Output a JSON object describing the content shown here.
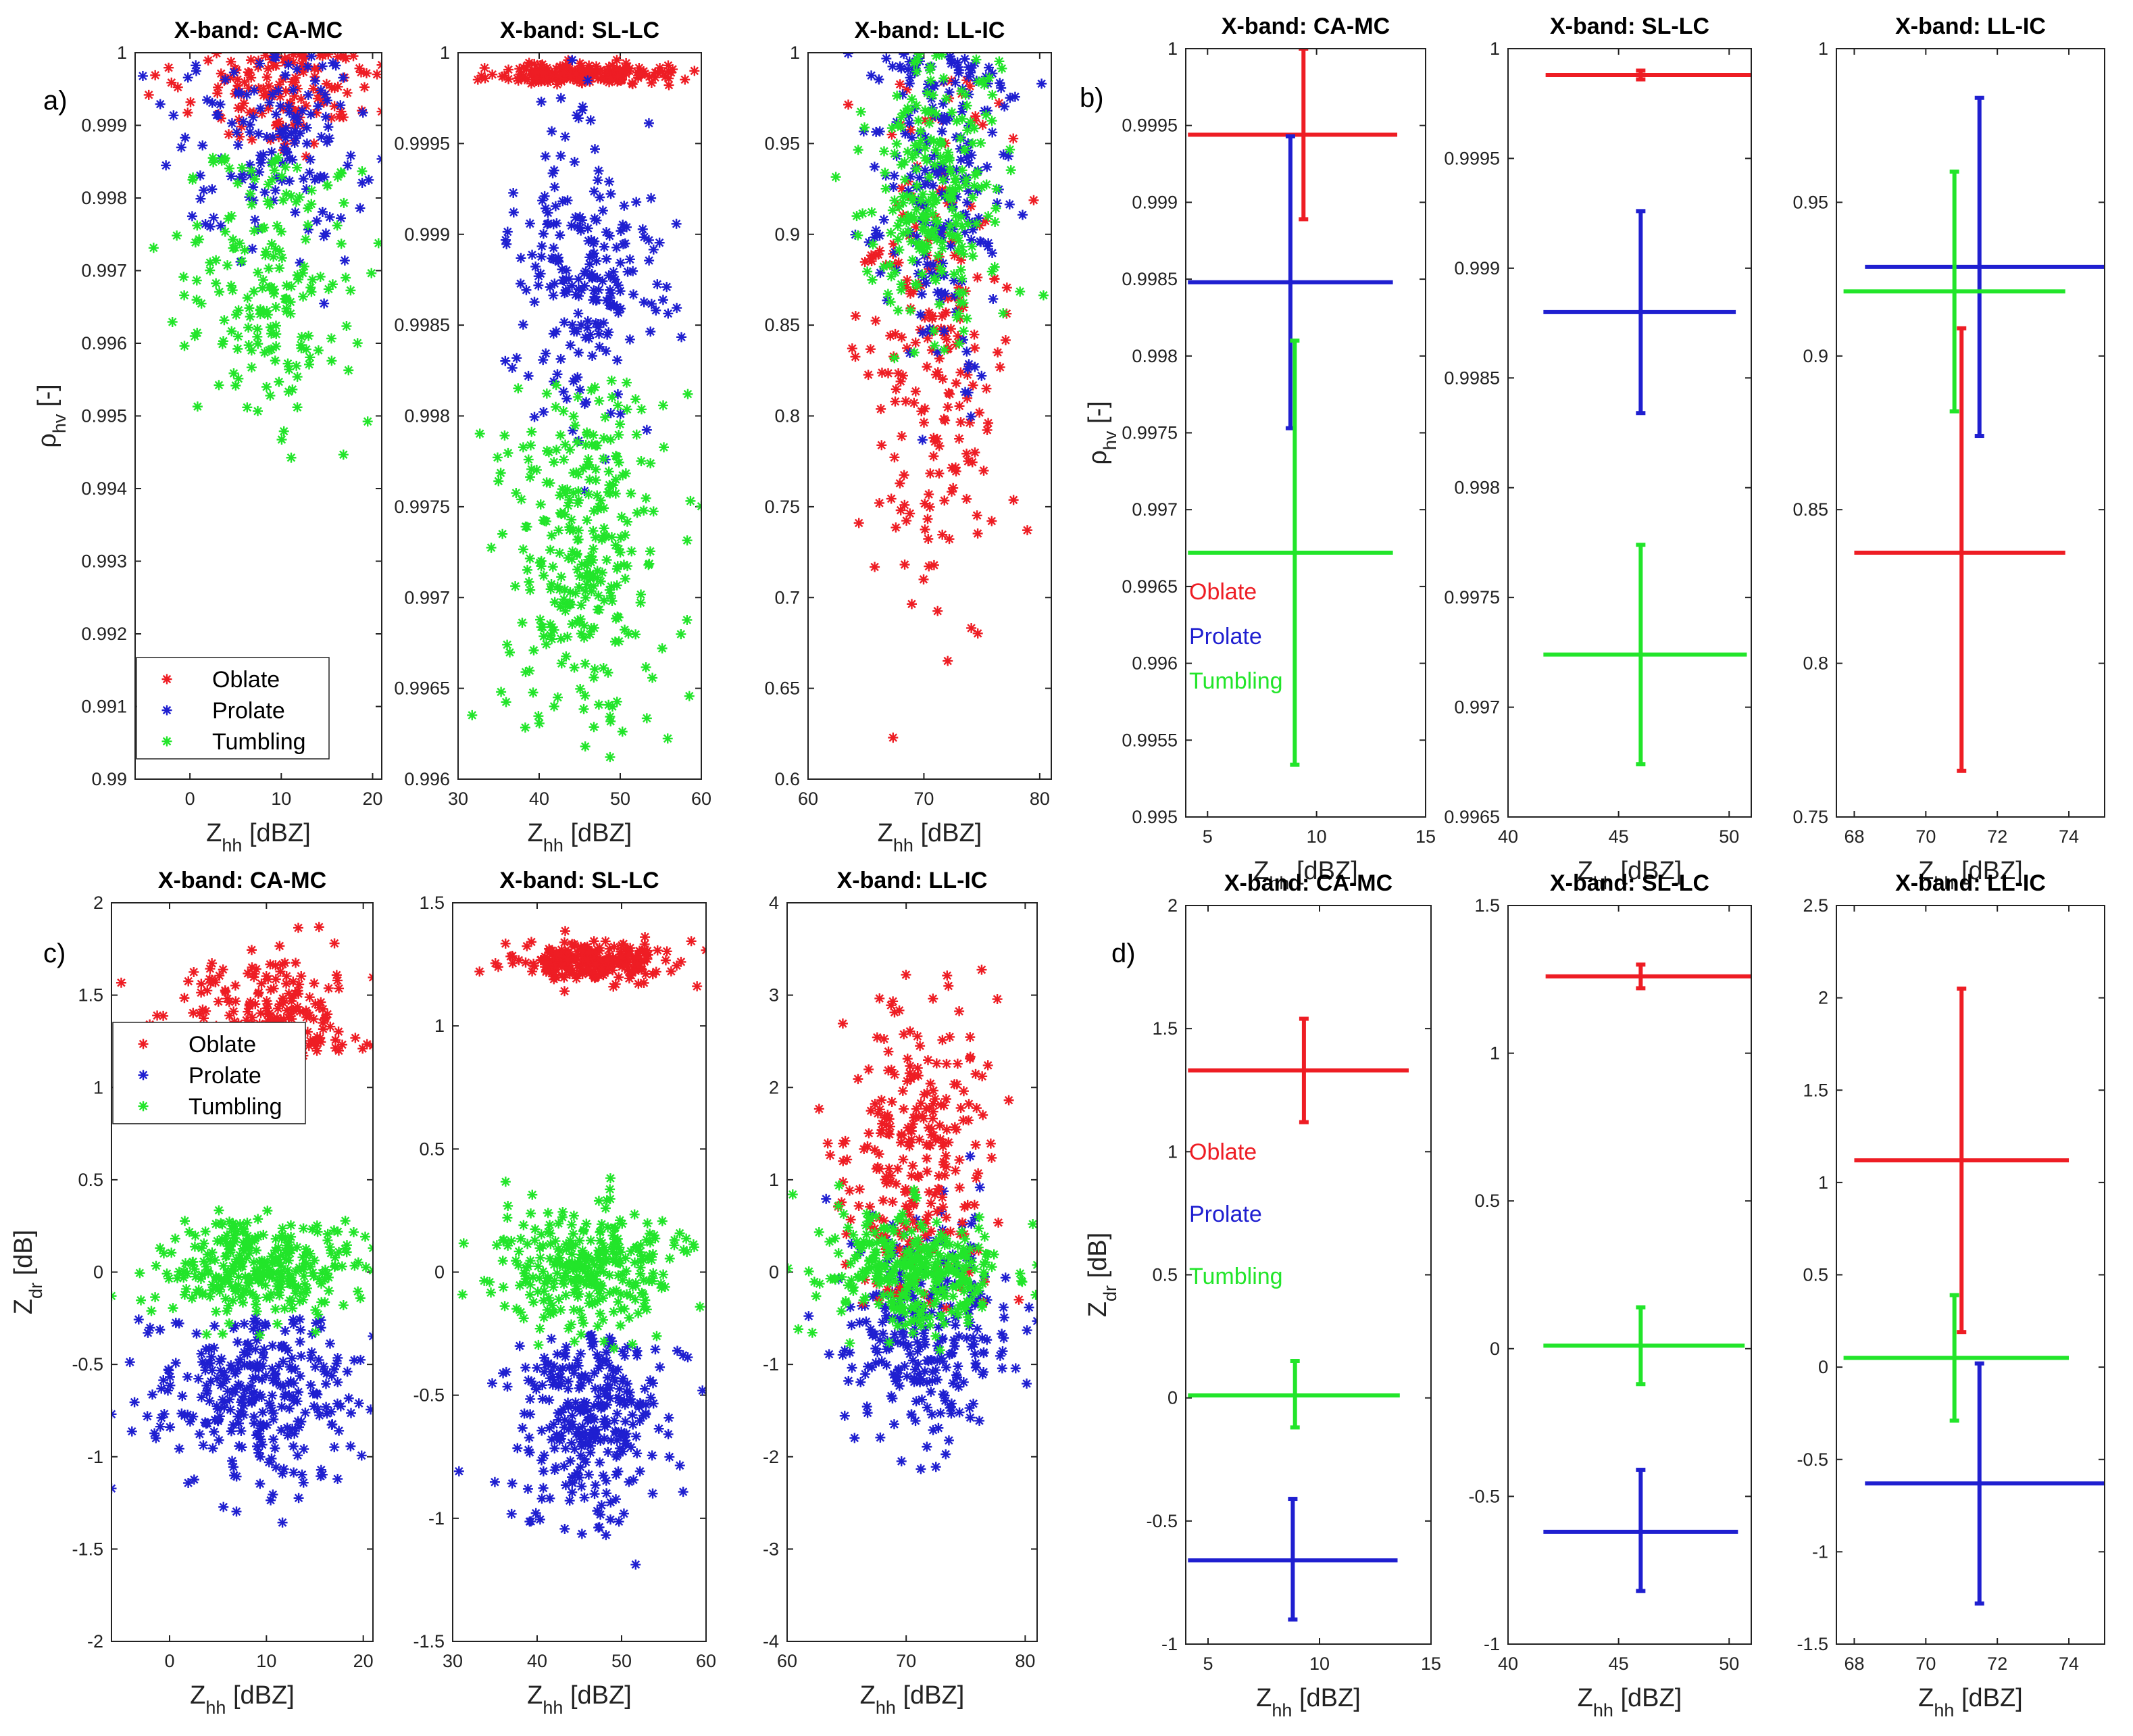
{
  "figure": {
    "panel_labels": [
      "a)",
      "b)",
      "c)",
      "d)"
    ],
    "colors": {
      "Oblate": "#ee1d24",
      "Prolate": "#1f1fd0",
      "Tumbling": "#22e52a"
    }
  },
  "chart_data": [
    {
      "id": "a1",
      "type": "scatter",
      "title": "X-band: CA-MC",
      "xlabel": "Z_hh [dBZ]",
      "ylabel": "ρ_hv [-]",
      "xlim": [
        -6,
        21
      ],
      "ylim": [
        0.99,
        1.0
      ],
      "xticks": [
        "0",
        "10",
        "20"
      ],
      "yticks": [
        "0.99",
        "0.991",
        "0.992",
        "0.993",
        "0.994",
        "0.995",
        "0.996",
        "0.997",
        "0.998",
        "0.999",
        "1"
      ],
      "legend": {
        "position": "bottom-left",
        "entries": [
          "Oblate",
          "Prolate",
          "Tumbling"
        ]
      },
      "series": [
        {
          "name": "Oblate",
          "n": 150,
          "x_mean": 10,
          "x_sd": 5,
          "y_mean": 0.9995,
          "y_sd": 0.00035,
          "y_max": 1.0
        },
        {
          "name": "Prolate",
          "n": 150,
          "x_mean": 9,
          "x_sd": 4.5,
          "y_mean": 0.9987,
          "y_sd": 0.0007,
          "y_max": 1.0
        },
        {
          "name": "Tumbling",
          "n": 190,
          "x_mean": 9,
          "x_sd": 5,
          "y_mean": 0.9969,
          "y_sd": 0.0011,
          "y_max": 0.9986
        }
      ]
    },
    {
      "id": "a2",
      "type": "scatter",
      "title": "X-band: SL-LC",
      "xlabel": "Z_hh [dBZ]",
      "ylabel": "",
      "xlim": [
        30,
        60
      ],
      "ylim": [
        0.996,
        1.0
      ],
      "xticks": [
        "30",
        "40",
        "50",
        "60"
      ],
      "yticks": [
        "0.996",
        "0.9965",
        "0.997",
        "0.9975",
        "0.998",
        "0.9985",
        "0.999",
        "0.9995",
        "1"
      ],
      "series": [
        {
          "name": "Oblate",
          "n": 200,
          "x_mean": 46,
          "x_sd": 5.5,
          "y_mean": 0.99988,
          "y_sd": 3e-05,
          "y_max": 1.0
        },
        {
          "name": "Prolate",
          "n": 220,
          "x_mean": 46,
          "x_sd": 4.5,
          "y_mean": 0.9988,
          "y_sd": 0.00042,
          "y_max": 1.0
        },
        {
          "name": "Tumbling",
          "n": 300,
          "x_mean": 46,
          "x_sd": 5,
          "y_mean": 0.99725,
          "y_sd": 0.00045,
          "y_max": 0.9982
        }
      ]
    },
    {
      "id": "a3",
      "type": "scatter",
      "title": "X-band: LL-IC",
      "xlabel": "Z_hh [dBZ]",
      "ylabel": "",
      "xlim": [
        60,
        81
      ],
      "ylim": [
        0.6,
        1.0
      ],
      "xticks": [
        "60",
        "70",
        "80"
      ],
      "yticks": [
        "0.6",
        "0.65",
        "0.7",
        "0.75",
        "0.8",
        "0.85",
        "0.9",
        "0.95",
        "1"
      ],
      "series": [
        {
          "name": "Oblate",
          "n": 220,
          "x_mean": 71,
          "x_sd": 3,
          "y_mean": 0.835,
          "y_sd": 0.07,
          "y_max": 0.99
        },
        {
          "name": "Prolate",
          "n": 220,
          "x_mean": 71.5,
          "x_sd": 3.3,
          "y_mean": 0.928,
          "y_sd": 0.055,
          "y_max": 1.0
        },
        {
          "name": "Tumbling",
          "n": 240,
          "x_mean": 70.8,
          "x_sd": 3.2,
          "y_mean": 0.92,
          "y_sd": 0.04,
          "y_max": 1.0
        }
      ]
    },
    {
      "id": "b1",
      "type": "errorbar",
      "title": "X-band: CA-MC",
      "xlabel": "Z_hh [dBZ]",
      "ylabel": "ρ_hv [-]",
      "xlim": [
        4,
        15
      ],
      "ylim": [
        0.995,
        1.0
      ],
      "xticks": [
        "5",
        "10",
        "15"
      ],
      "yticks": [
        "0.995",
        "0.9955",
        "0.996",
        "0.9965",
        "0.997",
        "0.9975",
        "0.998",
        "0.9985",
        "0.999",
        "0.9995",
        "1"
      ],
      "inline_legend": [
        "Oblate",
        "Prolate",
        "Tumbling"
      ],
      "series": [
        {
          "name": "Oblate",
          "x": 9.4,
          "x_lo": 4.1,
          "x_hi": 13.7,
          "y": 0.99944,
          "y_lo": 0.99889,
          "y_hi": 1.0
        },
        {
          "name": "Prolate",
          "x": 8.8,
          "x_lo": 4.1,
          "x_hi": 13.5,
          "y": 0.99848,
          "y_lo": 0.99753,
          "y_hi": 0.99943
        },
        {
          "name": "Tumbling",
          "x": 9.0,
          "x_lo": 4.1,
          "x_hi": 13.5,
          "y": 0.99672,
          "y_lo": 0.99534,
          "y_hi": 0.9981
        }
      ]
    },
    {
      "id": "b2",
      "type": "errorbar",
      "title": "X-band: SL-LC",
      "xlabel": "Z_hh [dBZ]",
      "ylabel": "",
      "xlim": [
        40,
        51
      ],
      "ylim": [
        0.9965,
        1.0
      ],
      "xticks": [
        "40",
        "45",
        "50"
      ],
      "yticks": [
        "0.9965",
        "0.997",
        "0.9975",
        "0.998",
        "0.9985",
        "0.999",
        "0.9995",
        "1"
      ],
      "series": [
        {
          "name": "Oblate",
          "x": 46.0,
          "x_lo": 41.7,
          "x_hi": 51.0,
          "y": 0.99988,
          "y_lo": 0.99986,
          "y_hi": 0.9999
        },
        {
          "name": "Prolate",
          "x": 46.0,
          "x_lo": 41.6,
          "x_hi": 50.3,
          "y": 0.9988,
          "y_lo": 0.99834,
          "y_hi": 0.99926
        },
        {
          "name": "Tumbling",
          "x": 46.0,
          "x_lo": 41.6,
          "x_hi": 50.8,
          "y": 0.99724,
          "y_lo": 0.99674,
          "y_hi": 0.99774
        }
      ]
    },
    {
      "id": "b3",
      "type": "errorbar",
      "title": "X-band: LL-IC",
      "xlabel": "Z_hh [dBZ]",
      "ylabel": "",
      "xlim": [
        67.5,
        75
      ],
      "ylim": [
        0.75,
        1.0
      ],
      "xticks": [
        "68",
        "70",
        "72",
        "74"
      ],
      "yticks": [
        "0.75",
        "0.8",
        "0.85",
        "0.9",
        "0.95",
        "1"
      ],
      "series": [
        {
          "name": "Oblate",
          "x": 71.0,
          "x_lo": 68.0,
          "x_hi": 73.9,
          "y": 0.836,
          "y_lo": 0.765,
          "y_hi": 0.909
        },
        {
          "name": "Prolate",
          "x": 71.5,
          "x_lo": 68.3,
          "x_hi": 75.0,
          "y": 0.929,
          "y_lo": 0.874,
          "y_hi": 0.984
        },
        {
          "name": "Tumbling",
          "x": 70.8,
          "x_lo": 67.7,
          "x_hi": 73.9,
          "y": 0.921,
          "y_lo": 0.882,
          "y_hi": 0.96
        }
      ]
    },
    {
      "id": "c1",
      "type": "scatter",
      "title": "X-band: CA-MC",
      "xlabel": "Z_hh [dBZ]",
      "ylabel": "Z_dr [dB]",
      "xlim": [
        -6,
        21
      ],
      "ylim": [
        -2,
        2
      ],
      "xticks": [
        "0",
        "10",
        "20"
      ],
      "yticks": [
        "-2",
        "-1.5",
        "-1",
        "-0.5",
        "0",
        "0.5",
        "1",
        "1.5",
        "2"
      ],
      "legend": {
        "position": "top-left",
        "entries": [
          "Oblate",
          "Prolate",
          "Tumbling"
        ]
      },
      "series": [
        {
          "name": "Oblate",
          "n": 230,
          "x_mean": 10,
          "x_sd": 4.5,
          "y_mean": 1.33,
          "y_sd": 0.21,
          "y_min": 1.17,
          "y_max": 1.95
        },
        {
          "name": "Prolate",
          "n": 300,
          "x_mean": 9,
          "x_sd": 5,
          "y_mean": -0.66,
          "y_sd": 0.26,
          "y_max": -0.25
        },
        {
          "name": "Tumbling",
          "n": 300,
          "x_mean": 9,
          "x_sd": 5,
          "y_mean": 0.02,
          "y_sd": 0.13
        }
      ]
    },
    {
      "id": "c2",
      "type": "scatter",
      "title": "X-band: SL-LC",
      "xlabel": "Z_hh [dBZ]",
      "ylabel": "",
      "xlim": [
        30,
        60
      ],
      "ylim": [
        -1.5,
        1.5
      ],
      "xticks": [
        "30",
        "40",
        "50",
        "60"
      ],
      "yticks": [
        "-1.5",
        "-1",
        "-0.5",
        "0",
        "0.5",
        "1",
        "1.5"
      ],
      "series": [
        {
          "name": "Oblate",
          "n": 260,
          "x_mean": 46,
          "x_sd": 5,
          "y_mean": 1.26,
          "y_sd": 0.04
        },
        {
          "name": "Prolate",
          "n": 300,
          "x_mean": 46,
          "x_sd": 4.5,
          "y_mean": -0.62,
          "y_sd": 0.2,
          "y_max": -0.25
        },
        {
          "name": "Tumbling",
          "n": 300,
          "x_mean": 46,
          "x_sd": 5,
          "y_mean": 0.01,
          "y_sd": 0.12
        }
      ]
    },
    {
      "id": "c3",
      "type": "scatter",
      "title": "X-band: LL-IC",
      "xlabel": "Z_hh [dBZ]",
      "ylabel": "",
      "xlim": [
        60,
        81
      ],
      "ylim": [
        -4,
        4
      ],
      "xticks": [
        "60",
        "70",
        "80"
      ],
      "yticks": [
        "-4",
        "-3",
        "-2",
        "-1",
        "0",
        "1",
        "2",
        "3",
        "4"
      ],
      "series": [
        {
          "name": "Prolate",
          "n": 280,
          "x_mean": 71.5,
          "x_sd": 3.5,
          "y_mean": -0.65,
          "y_sd": 0.6,
          "y_max": 1.6
        },
        {
          "name": "Oblate",
          "n": 260,
          "x_mean": 71,
          "x_sd": 3,
          "y_mean": 1.2,
          "y_sd": 0.9,
          "y_min": -0.4
        },
        {
          "name": "Tumbling",
          "n": 320,
          "x_mean": 70.8,
          "x_sd": 3.5,
          "y_mean": 0.05,
          "y_sd": 0.3
        }
      ]
    },
    {
      "id": "d1",
      "type": "errorbar",
      "title": "X-band: CA-MC",
      "xlabel": "Z_hh [dBZ]",
      "ylabel": "Z_dr [dB]",
      "xlim": [
        4,
        15
      ],
      "ylim": [
        -1,
        2
      ],
      "xticks": [
        "5",
        "10",
        "15"
      ],
      "yticks": [
        "-1",
        "-0.5",
        "0",
        "0.5",
        "1",
        "1.5",
        "2"
      ],
      "inline_legend": [
        "Oblate",
        "Prolate",
        "Tumbling"
      ],
      "series": [
        {
          "name": "Oblate",
          "x": 9.3,
          "x_lo": 4.1,
          "x_hi": 14.0,
          "y": 1.33,
          "y_lo": 1.12,
          "y_hi": 1.54
        },
        {
          "name": "Prolate",
          "x": 8.8,
          "x_lo": 4.1,
          "x_hi": 13.5,
          "y": -0.66,
          "y_lo": -0.9,
          "y_hi": -0.41
        },
        {
          "name": "Tumbling",
          "x": 8.9,
          "x_lo": 4.1,
          "x_hi": 13.6,
          "y": 0.01,
          "y_lo": -0.12,
          "y_hi": 0.15
        }
      ]
    },
    {
      "id": "d2",
      "type": "errorbar",
      "title": "X-band: SL-LC",
      "xlabel": "Z_hh [dBZ]",
      "ylabel": "",
      "xlim": [
        40,
        51
      ],
      "ylim": [
        -1,
        1.5
      ],
      "xticks": [
        "40",
        "45",
        "50"
      ],
      "yticks": [
        "-1",
        "-0.5",
        "0",
        "0.5",
        "1",
        "1.5"
      ],
      "series": [
        {
          "name": "Oblate",
          "x": 46.0,
          "x_lo": 41.7,
          "x_hi": 51.0,
          "y": 1.26,
          "y_lo": 1.22,
          "y_hi": 1.3
        },
        {
          "name": "Prolate",
          "x": 46.0,
          "x_lo": 41.6,
          "x_hi": 50.4,
          "y": -0.62,
          "y_lo": -0.82,
          "y_hi": -0.41
        },
        {
          "name": "Tumbling",
          "x": 46.0,
          "x_lo": 41.6,
          "x_hi": 50.7,
          "y": 0.01,
          "y_lo": -0.12,
          "y_hi": 0.14
        }
      ]
    },
    {
      "id": "d3",
      "type": "errorbar",
      "title": "X-band: LL-IC",
      "xlabel": "Z_hh [dBZ]",
      "ylabel": "",
      "xlim": [
        67.5,
        75
      ],
      "ylim": [
        -1.5,
        2.5
      ],
      "xticks": [
        "68",
        "70",
        "72",
        "74"
      ],
      "yticks": [
        "-1.5",
        "-1",
        "-0.5",
        "0",
        "0.5",
        "1",
        "1.5",
        "2",
        "2.5"
      ],
      "series": [
        {
          "name": "Oblate",
          "x": 71.0,
          "x_lo": 68.0,
          "x_hi": 74.0,
          "y": 1.12,
          "y_lo": 0.19,
          "y_hi": 2.05
        },
        {
          "name": "Prolate",
          "x": 71.5,
          "x_lo": 68.3,
          "x_hi": 75.0,
          "y": -0.63,
          "y_lo": -1.28,
          "y_hi": 0.02
        },
        {
          "name": "Tumbling",
          "x": 70.8,
          "x_lo": 67.7,
          "x_hi": 74.0,
          "y": 0.05,
          "y_lo": -0.29,
          "y_hi": 0.39
        }
      ]
    }
  ]
}
